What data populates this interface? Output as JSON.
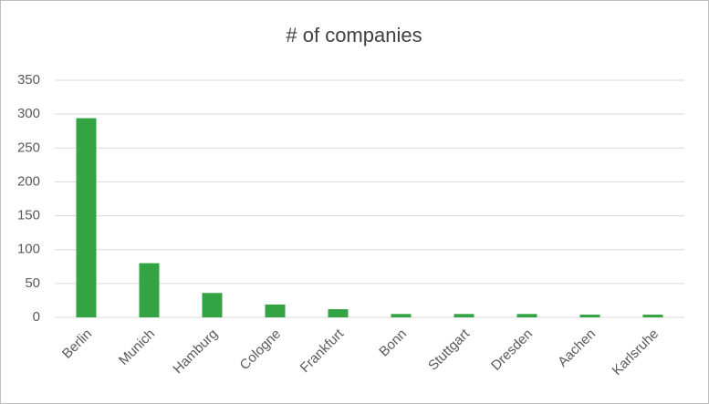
{
  "chart_data": {
    "type": "bar",
    "title": "# of companies",
    "categories": [
      "Berlin",
      "Munich",
      "Hamburg",
      "Cologne",
      "Frankfurt",
      "Bonn",
      "Stuttgart",
      "Dresden",
      "Aachen",
      "Karlsruhe"
    ],
    "values": [
      294,
      80,
      36,
      19,
      12,
      5,
      5,
      5,
      4,
      4
    ],
    "color": "#34a343",
    "ylim": [
      0,
      350
    ],
    "yticks": [
      0,
      50,
      100,
      150,
      200,
      250,
      300,
      350
    ],
    "grid": true
  }
}
